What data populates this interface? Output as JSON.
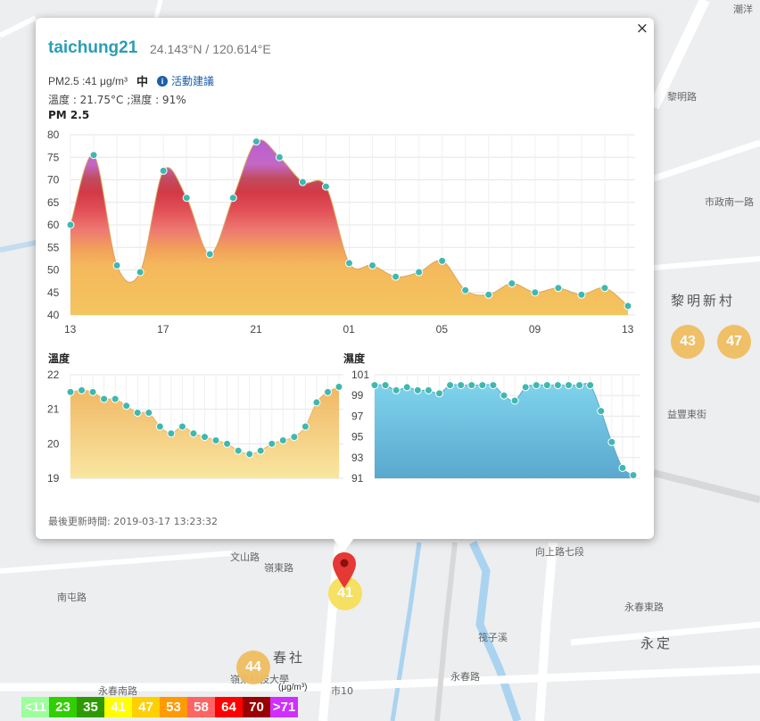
{
  "map": {
    "labels": [
      {
        "text": "黎明新村"
      },
      {
        "text": "春社"
      },
      {
        "text": "永定"
      },
      {
        "text": "市政南一路"
      },
      {
        "text": "永春路"
      },
      {
        "text": "永春南路"
      },
      {
        "text": "文山路"
      },
      {
        "text": "益豐東街"
      },
      {
        "text": "市10"
      },
      {
        "text": "嶺東科技大學"
      },
      {
        "text": "潮洋"
      },
      {
        "text": "黎明路"
      },
      {
        "text": "向上路七段"
      },
      {
        "text": "嶺東路"
      },
      {
        "text": "永春東路"
      },
      {
        "text": "南屯路"
      },
      {
        "text": "筏子溪"
      }
    ],
    "clusters": [
      {
        "id": "c1",
        "value": "43"
      },
      {
        "id": "c2",
        "value": "47"
      },
      {
        "id": "c3",
        "value": "44"
      }
    ],
    "selected_marker": {
      "value": "41"
    }
  },
  "popup": {
    "close_label": "×",
    "site_name": "taichung21",
    "coordinates": "24.143°N / 120.614°E",
    "pm25_reading": "PM2.5 :41 μg/m³",
    "pm25_level": "中",
    "info_icon": "i",
    "advice_link": "活動建議",
    "weather": "溫度 : 21.75°C ;濕度 : 91%",
    "pm_chart_title": "PM 2.5",
    "temp_chart_title": "溫度",
    "humidity_chart_title": "濕度",
    "last_updated": "最後更新時間: 2019-03-17 13:23:32"
  },
  "legend": {
    "unit": "(μg/m³)",
    "items": [
      {
        "label": "<11",
        "color": "#9cff9c"
      },
      {
        "label": "23",
        "color": "#31cf00"
      },
      {
        "label": "35",
        "color": "#2e9a00"
      },
      {
        "label": "41",
        "color": "#ffff00"
      },
      {
        "label": "47",
        "color": "#ffcf00"
      },
      {
        "label": "53",
        "color": "#ff9a00"
      },
      {
        "label": "58",
        "color": "#ff6464"
      },
      {
        "label": "64",
        "color": "#ff0000"
      },
      {
        "label": "70",
        "color": "#990000"
      },
      {
        "label": ">71",
        "color": "#ce30ff"
      }
    ]
  },
  "chart_data": [
    {
      "type": "area",
      "title": "PM 2.5",
      "xlabel": "",
      "ylabel": "",
      "ylim": [
        40,
        80
      ],
      "yticks": [
        40,
        45,
        50,
        55,
        60,
        65,
        70,
        75,
        80
      ],
      "xticks": [
        "13",
        "17",
        "21",
        "01",
        "05",
        "09",
        "13"
      ],
      "xtick_index": [
        0,
        4,
        8,
        12,
        16,
        20,
        24
      ],
      "grid": true,
      "values": [
        60,
        75.5,
        51,
        49.5,
        72,
        66,
        53.5,
        66,
        78.5,
        75,
        69.5,
        68.5,
        51.5,
        51,
        48.5,
        49.5,
        52,
        45.5,
        44.5,
        47,
        45,
        46,
        44.5,
        46,
        42
      ]
    },
    {
      "type": "area",
      "title": "溫度",
      "xlabel": "",
      "ylabel": "",
      "ylim": [
        19,
        22
      ],
      "yticks": [
        19,
        20,
        21,
        22
      ],
      "grid": true,
      "values": [
        21.5,
        21.55,
        21.5,
        21.3,
        21.3,
        21.1,
        20.9,
        20.9,
        20.5,
        20.3,
        20.5,
        20.3,
        20.2,
        20.1,
        20.0,
        19.8,
        19.7,
        19.8,
        20.0,
        20.1,
        20.2,
        20.5,
        21.2,
        21.5,
        21.65
      ]
    },
    {
      "type": "area",
      "title": "濕度",
      "xlabel": "",
      "ylabel": "",
      "ylim": [
        91,
        101
      ],
      "yticks": [
        91,
        93,
        95,
        97,
        99,
        101
      ],
      "grid": true,
      "values": [
        100,
        100,
        99.5,
        99.8,
        99.5,
        99.5,
        99.2,
        100,
        100,
        100,
        100,
        100,
        99,
        98.5,
        99.8,
        100,
        100,
        100,
        100,
        100,
        100,
        97.5,
        94.5,
        92,
        91.3
      ]
    }
  ]
}
